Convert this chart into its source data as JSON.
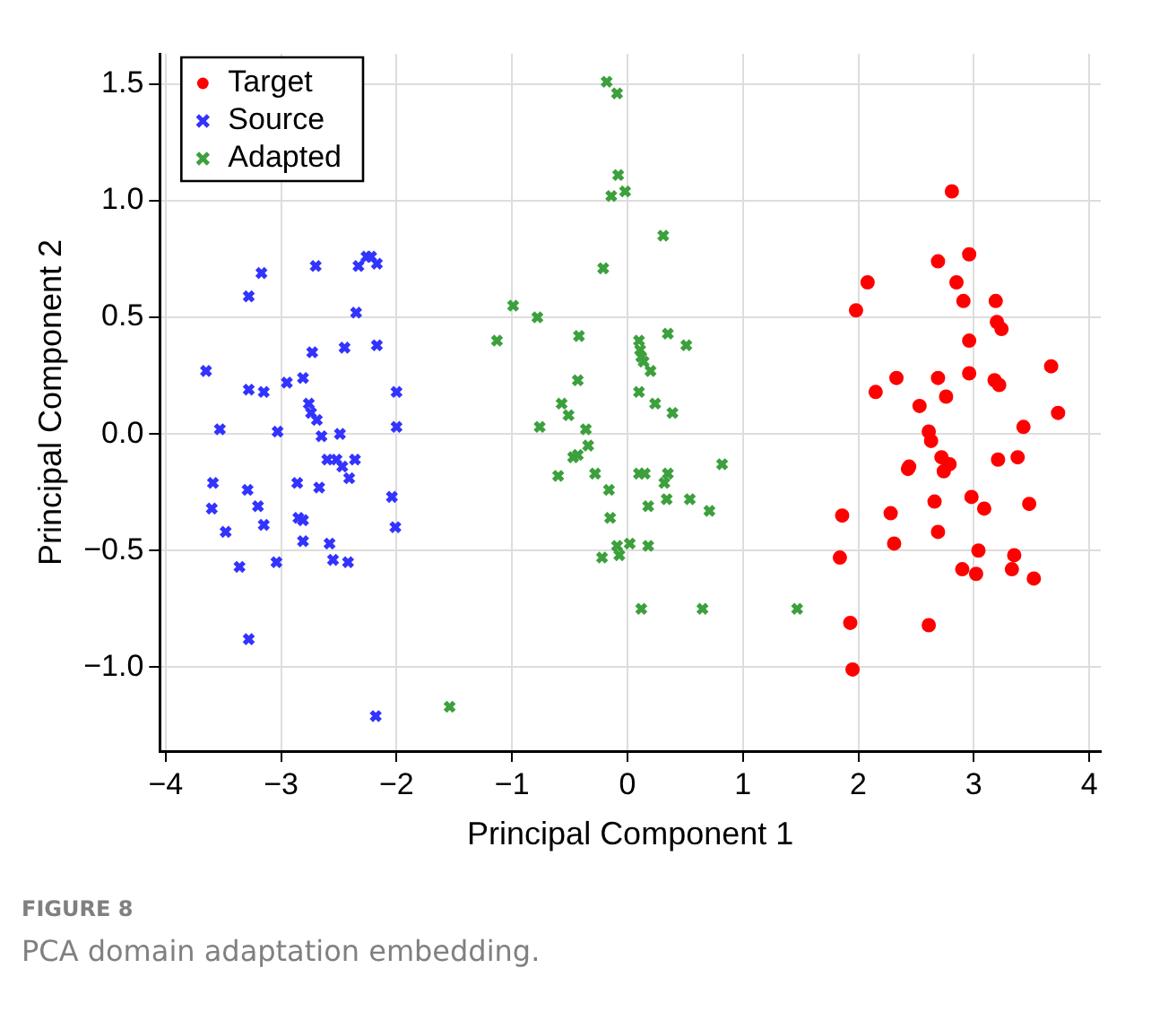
{
  "chart_data": {
    "type": "scatter",
    "xlabel": "Principal Component 1",
    "ylabel": "Principal Component 2",
    "xlim": [
      -4.05,
      4.1
    ],
    "ylim": [
      -1.36,
      1.63
    ],
    "xticks": [
      -4,
      -3,
      -2,
      -1,
      0,
      1,
      2,
      3,
      4
    ],
    "yticks": [
      {
        "value": -1,
        "label": "−1.0"
      },
      -0.5,
      {
        "value": 0,
        "label": "0.0"
      },
      0.5,
      {
        "value": 1,
        "label": "1.0"
      },
      1.5
    ],
    "grid": true,
    "legend": "top left",
    "annotations": [
      "FIGURE 8",
      "PCA domain adaptation embedding."
    ],
    "series": [
      {
        "name": "Target",
        "color": "#ff0000",
        "marker": "circle",
        "x": [
          2.81,
          2.69,
          2.96,
          2.08,
          2.85,
          1.98,
          2.91,
          3.19,
          3.2,
          3.24,
          2.96,
          3.67,
          2.33,
          2.69,
          2.96,
          3.18,
          3.22,
          2.15,
          2.76,
          2.53,
          3.73,
          3.43,
          2.61,
          2.63,
          2.44,
          2.43,
          2.72,
          2.79,
          2.74,
          3.21,
          3.38,
          2.66,
          2.98,
          3.09,
          3.48,
          1.86,
          2.28,
          2.69,
          2.31,
          3.04,
          3.35,
          1.84,
          2.9,
          3.02,
          3.33,
          3.52,
          1.93,
          2.61,
          1.95
        ],
        "values": [
          1.04,
          0.74,
          0.77,
          0.65,
          0.65,
          0.53,
          0.57,
          0.57,
          0.48,
          0.45,
          0.4,
          0.29,
          0.24,
          0.24,
          0.26,
          0.23,
          0.21,
          0.18,
          0.16,
          0.12,
          0.09,
          0.03,
          0.01,
          -0.03,
          -0.14,
          -0.15,
          -0.1,
          -0.13,
          -0.16,
          -0.11,
          -0.1,
          -0.29,
          -0.27,
          -0.32,
          -0.3,
          -0.35,
          -0.34,
          -0.42,
          -0.47,
          -0.5,
          -0.52,
          -0.53,
          -0.58,
          -0.6,
          -0.58,
          -0.62,
          -0.81,
          -0.82,
          -1.01
        ]
      },
      {
        "name": "Source",
        "color": "#3333ff",
        "marker": "cross",
        "x": [
          -3.17,
          -3.28,
          -2.7,
          -2.33,
          -2.26,
          -2.22,
          -2.17,
          -2.35,
          -2.73,
          -2.45,
          -2.17,
          -3.65,
          -3.28,
          -3.15,
          -2.95,
          -2.81,
          -2.76,
          -2.74,
          -2.69,
          -2.0,
          -2.0,
          -3.53,
          -3.03,
          -2.65,
          -2.49,
          -2.6,
          -2.52,
          -2.47,
          -2.36,
          -2.41,
          -3.59,
          -3.29,
          -2.86,
          -2.67,
          -2.04,
          -3.6,
          -3.2,
          -3.48,
          -3.15,
          -2.85,
          -2.81,
          -2.81,
          -2.58,
          -2.01,
          -3.36,
          -3.04,
          -2.55,
          -2.42,
          -3.28,
          -2.18
        ],
        "values": [
          0.69,
          0.59,
          0.72,
          0.72,
          0.76,
          0.76,
          0.73,
          0.52,
          0.35,
          0.37,
          0.38,
          0.27,
          0.19,
          0.18,
          0.22,
          0.24,
          0.13,
          0.09,
          0.06,
          0.18,
          0.03,
          0.02,
          0.01,
          -0.01,
          0.0,
          -0.11,
          -0.11,
          -0.14,
          -0.11,
          -0.19,
          -0.21,
          -0.24,
          -0.21,
          -0.23,
          -0.27,
          -0.32,
          -0.31,
          -0.42,
          -0.39,
          -0.36,
          -0.37,
          -0.46,
          -0.47,
          -0.4,
          -0.57,
          -0.55,
          -0.54,
          -0.55,
          -0.88,
          -1.21
        ]
      },
      {
        "name": "Adapted",
        "color": "#3ca03c",
        "marker": "cross",
        "x": [
          -0.18,
          -0.09,
          -0.08,
          -0.14,
          -0.02,
          0.31,
          -0.21,
          -0.99,
          -0.78,
          -1.13,
          -0.42,
          0.1,
          0.35,
          0.51,
          0.11,
          0.12,
          0.14,
          0.2,
          -0.43,
          0.1,
          0.24,
          0.39,
          -0.57,
          -0.51,
          -0.76,
          -0.36,
          -0.34,
          -0.47,
          -0.43,
          -0.6,
          -0.28,
          0.1,
          0.15,
          0.35,
          0.32,
          0.82,
          -0.16,
          0.18,
          0.34,
          0.54,
          0.71,
          -0.15,
          -0.22,
          -0.09,
          -0.07,
          0.02,
          0.18,
          0.12,
          0.65,
          1.47,
          -1.54
        ],
        "values": [
          1.51,
          1.46,
          1.11,
          1.02,
          1.04,
          0.85,
          0.71,
          0.55,
          0.5,
          0.4,
          0.42,
          0.4,
          0.43,
          0.38,
          0.36,
          0.33,
          0.31,
          0.27,
          0.23,
          0.18,
          0.13,
          0.09,
          0.13,
          0.08,
          0.03,
          0.02,
          -0.05,
          -0.1,
          -0.09,
          -0.18,
          -0.17,
          -0.17,
          -0.17,
          -0.17,
          -0.21,
          -0.13,
          -0.24,
          -0.31,
          -0.28,
          -0.28,
          -0.33,
          -0.36,
          -0.53,
          -0.48,
          -0.52,
          -0.47,
          -0.48,
          -0.75,
          -0.75,
          -0.75,
          -1.17
        ]
      }
    ]
  }
}
